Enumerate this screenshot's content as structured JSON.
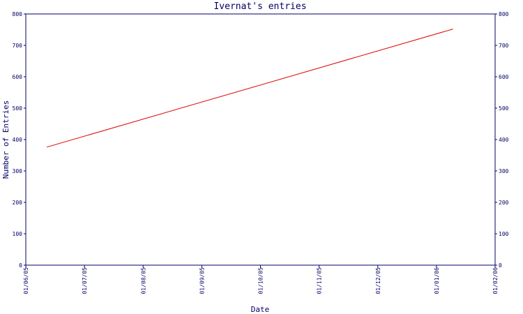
{
  "chart_data": {
    "type": "line",
    "title": "Ivernat's entries",
    "xlabel": "Date",
    "ylabel": "Number of Entries",
    "x_tick_labels": [
      "01/06/05",
      "01/07/05",
      "01/08/05",
      "01/09/05",
      "01/10/05",
      "01/11/05",
      "01/12/05",
      "01/01/06",
      "01/02/06"
    ],
    "y_ticks": [
      0,
      100,
      200,
      300,
      400,
      500,
      600,
      700,
      800
    ],
    "y_tick_labels": [
      "0",
      "100",
      "200",
      "300",
      "400",
      "500",
      "600",
      "700",
      "800"
    ],
    "ylim": [
      0,
      800
    ],
    "xlim": [
      "2005-06-01",
      "2006-02-01"
    ],
    "series": [
      {
        "color": "#dd0000",
        "x": [
          "2005-06-12",
          "2006-01-10"
        ],
        "y": [
          376,
          752
        ]
      }
    ],
    "colors": {
      "axis": "#000066",
      "text": "#000066",
      "line": "#dd0000"
    },
    "grid": false,
    "legend": "none",
    "mirror_y_axis": "right"
  }
}
